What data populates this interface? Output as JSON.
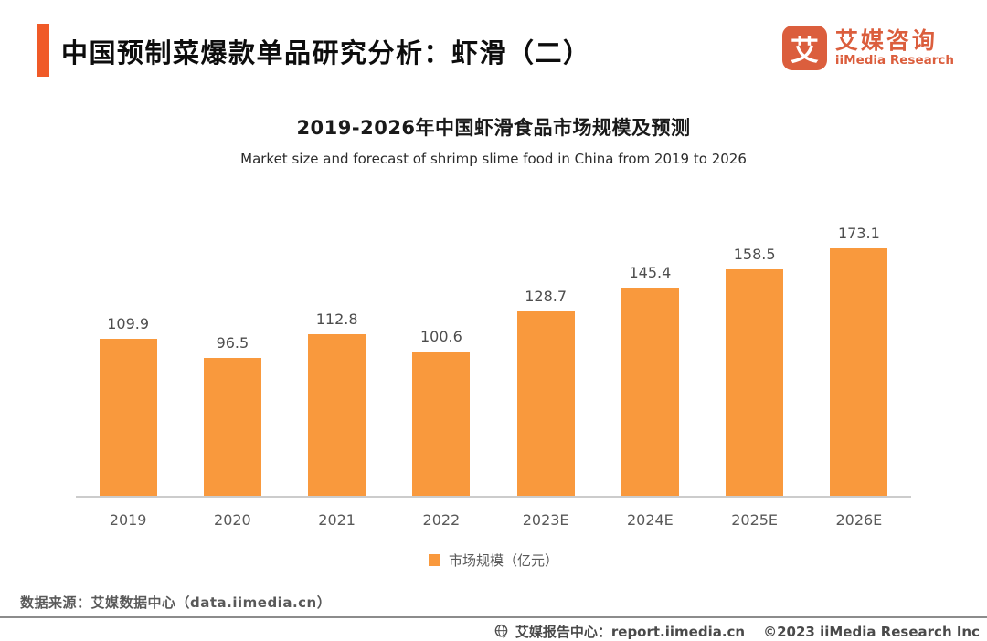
{
  "header": {
    "title": "中国预制菜爆款单品研究分析：虾滑（二）"
  },
  "logo": {
    "mark_glyph": "艾",
    "name_cn": "艾媒咨询",
    "name_en": "iiMedia Research"
  },
  "chart_data": {
    "type": "bar",
    "title": "2019-2026年中国虾滑食品市场规模及预测",
    "subtitle": "Market size and forecast of shrimp slime food in China from 2019 to 2026",
    "categories": [
      "2019",
      "2020",
      "2021",
      "2022",
      "2023E",
      "2024E",
      "2025E",
      "2026E"
    ],
    "values": [
      109.9,
      96.5,
      112.8,
      100.6,
      128.7,
      145.4,
      158.5,
      173.1
    ],
    "series_name": "市场规模（亿元）",
    "legend_position": "bottom",
    "value_labels": "above-bars",
    "grid": "off",
    "ylim": [
      0,
      180
    ],
    "bar_color": "#F9993D",
    "axis_line_color": "#cccccc"
  },
  "legend": {
    "label": "市场规模（亿元）"
  },
  "source": {
    "text": "数据来源：艾媒数据中心（data.iimedia.cn）"
  },
  "footer": {
    "icon": "globe-icon",
    "report_center": "艾媒报告中心：report.iimedia.cn",
    "copyright": "©2023  iiMedia Research Inc"
  },
  "colors": {
    "accent": "#F05A28",
    "logo": "#DB5E3D",
    "bar": "#F9993D"
  }
}
